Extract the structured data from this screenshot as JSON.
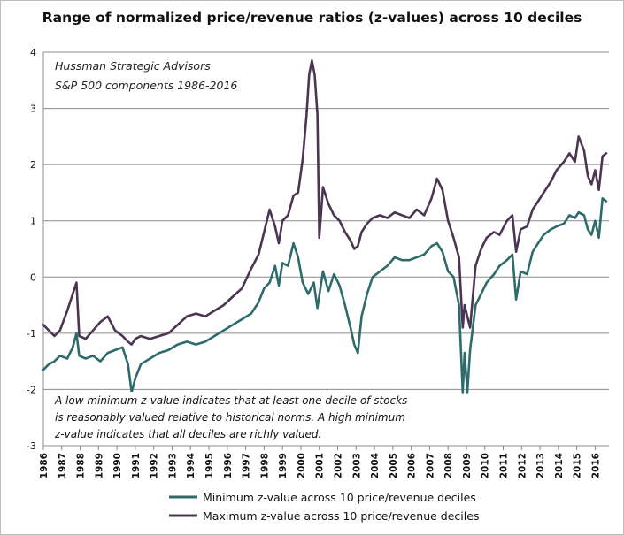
{
  "chart_data": {
    "type": "line",
    "title": "Range of normalized price/revenue ratios (z-values) across 10 deciles",
    "annotation": {
      "source": "Hussman Strategic Advisors",
      "subtitle": "S&P 500 components 1986-2016"
    },
    "caption": [
      "A low minimum z-value indicates that at least one decile of stocks",
      "is reasonably valued relative to historical norms. A high minimum",
      "z-value indicates that all deciles are richly valued."
    ],
    "ylim": [
      -3,
      4
    ],
    "yticks": [
      "-3",
      "-2",
      "-1",
      "0",
      "1",
      "2",
      "3",
      "4"
    ],
    "xlim": [
      1986,
      2016.75
    ],
    "xticks": [
      "1986",
      "1987",
      "1988",
      "1989",
      "1990",
      "1991",
      "1992",
      "1993",
      "1994",
      "1995",
      "1996",
      "1997",
      "1998",
      "1999",
      "2000",
      "2001",
      "2002",
      "2003",
      "2004",
      "2005",
      "2006",
      "2007",
      "2008",
      "2009",
      "2010",
      "2011",
      "2012",
      "2013",
      "2014",
      "2015",
      "2016"
    ],
    "grid": "horizontal",
    "legend_position": "bottom",
    "series": [
      {
        "name": "Minimum z-value across 10 price/revenue deciles",
        "color": "#2e6b6b",
        "points": [
          [
            1986.0,
            -1.65
          ],
          [
            1986.3,
            -1.55
          ],
          [
            1986.6,
            -1.5
          ],
          [
            1986.9,
            -1.4
          ],
          [
            1987.3,
            -1.45
          ],
          [
            1987.6,
            -1.25
          ],
          [
            1987.8,
            -1.0
          ],
          [
            1987.95,
            -1.4
          ],
          [
            1988.3,
            -1.45
          ],
          [
            1988.7,
            -1.4
          ],
          [
            1989.1,
            -1.5
          ],
          [
            1989.5,
            -1.35
          ],
          [
            1989.9,
            -1.3
          ],
          [
            1990.3,
            -1.25
          ],
          [
            1990.6,
            -1.55
          ],
          [
            1990.8,
            -2.05
          ],
          [
            1991.0,
            -1.8
          ],
          [
            1991.3,
            -1.55
          ],
          [
            1991.8,
            -1.45
          ],
          [
            1992.3,
            -1.35
          ],
          [
            1992.8,
            -1.3
          ],
          [
            1993.3,
            -1.2
          ],
          [
            1993.8,
            -1.15
          ],
          [
            1994.3,
            -1.2
          ],
          [
            1994.8,
            -1.15
          ],
          [
            1995.3,
            -1.05
          ],
          [
            1995.8,
            -0.95
          ],
          [
            1996.3,
            -0.85
          ],
          [
            1996.8,
            -0.75
          ],
          [
            1997.3,
            -0.65
          ],
          [
            1997.7,
            -0.45
          ],
          [
            1998.0,
            -0.2
          ],
          [
            1998.3,
            -0.1
          ],
          [
            1998.6,
            0.2
          ],
          [
            1998.8,
            -0.15
          ],
          [
            1999.0,
            0.25
          ],
          [
            1999.3,
            0.2
          ],
          [
            1999.6,
            0.6
          ],
          [
            1999.85,
            0.35
          ],
          [
            2000.1,
            -0.1
          ],
          [
            2000.4,
            -0.3
          ],
          [
            2000.7,
            -0.1
          ],
          [
            2000.9,
            -0.55
          ],
          [
            2001.2,
            0.1
          ],
          [
            2001.5,
            -0.25
          ],
          [
            2001.8,
            0.05
          ],
          [
            2002.1,
            -0.15
          ],
          [
            2002.4,
            -0.5
          ],
          [
            2002.7,
            -0.9
          ],
          [
            2002.9,
            -1.2
          ],
          [
            2003.1,
            -1.35
          ],
          [
            2003.3,
            -0.7
          ],
          [
            2003.6,
            -0.3
          ],
          [
            2003.9,
            0.0
          ],
          [
            2004.3,
            0.1
          ],
          [
            2004.7,
            0.2
          ],
          [
            2005.1,
            0.35
          ],
          [
            2005.5,
            0.3
          ],
          [
            2005.9,
            0.3
          ],
          [
            2006.3,
            0.35
          ],
          [
            2006.7,
            0.4
          ],
          [
            2007.1,
            0.55
          ],
          [
            2007.4,
            0.6
          ],
          [
            2007.7,
            0.45
          ],
          [
            2008.0,
            0.1
          ],
          [
            2008.3,
            0.0
          ],
          [
            2008.6,
            -0.5
          ],
          [
            2008.8,
            -2.05
          ],
          [
            2008.9,
            -1.35
          ],
          [
            2009.05,
            -2.05
          ],
          [
            2009.2,
            -1.3
          ],
          [
            2009.5,
            -0.5
          ],
          [
            2009.8,
            -0.3
          ],
          [
            2010.1,
            -0.1
          ],
          [
            2010.5,
            0.05
          ],
          [
            2010.8,
            0.2
          ],
          [
            2011.2,
            0.3
          ],
          [
            2011.5,
            0.4
          ],
          [
            2011.7,
            -0.4
          ],
          [
            2011.95,
            0.1
          ],
          [
            2012.3,
            0.05
          ],
          [
            2012.6,
            0.45
          ],
          [
            2012.9,
            0.6
          ],
          [
            2013.2,
            0.75
          ],
          [
            2013.6,
            0.85
          ],
          [
            2013.9,
            0.9
          ],
          [
            2014.3,
            0.95
          ],
          [
            2014.6,
            1.1
          ],
          [
            2014.9,
            1.05
          ],
          [
            2015.1,
            1.15
          ],
          [
            2015.4,
            1.1
          ],
          [
            2015.6,
            0.85
          ],
          [
            2015.8,
            0.75
          ],
          [
            2016.0,
            1.0
          ],
          [
            2016.2,
            0.7
          ],
          [
            2016.4,
            1.4
          ],
          [
            2016.6,
            1.35
          ]
        ]
      },
      {
        "name": "Maximum z-value across 10 price/revenue deciles",
        "color": "#4b3553",
        "points": [
          [
            1986.0,
            -0.85
          ],
          [
            1986.3,
            -0.95
          ],
          [
            1986.6,
            -1.05
          ],
          [
            1986.9,
            -0.95
          ],
          [
            1987.3,
            -0.6
          ],
          [
            1987.6,
            -0.3
          ],
          [
            1987.8,
            -0.1
          ],
          [
            1987.95,
            -1.05
          ],
          [
            1988.3,
            -1.1
          ],
          [
            1988.7,
            -0.95
          ],
          [
            1989.1,
            -0.8
          ],
          [
            1989.5,
            -0.7
          ],
          [
            1989.9,
            -0.95
          ],
          [
            1990.3,
            -1.05
          ],
          [
            1990.6,
            -1.15
          ],
          [
            1990.8,
            -1.2
          ],
          [
            1991.0,
            -1.1
          ],
          [
            1991.3,
            -1.05
          ],
          [
            1991.8,
            -1.1
          ],
          [
            1992.3,
            -1.05
          ],
          [
            1992.8,
            -1.0
          ],
          [
            1993.3,
            -0.85
          ],
          [
            1993.8,
            -0.7
          ],
          [
            1994.3,
            -0.65
          ],
          [
            1994.8,
            -0.7
          ],
          [
            1995.3,
            -0.6
          ],
          [
            1995.8,
            -0.5
          ],
          [
            1996.3,
            -0.35
          ],
          [
            1996.8,
            -0.2
          ],
          [
            1997.3,
            0.15
          ],
          [
            1997.7,
            0.4
          ],
          [
            1998.0,
            0.8
          ],
          [
            1998.3,
            1.2
          ],
          [
            1998.6,
            0.9
          ],
          [
            1998.8,
            0.6
          ],
          [
            1999.0,
            1.0
          ],
          [
            1999.3,
            1.1
          ],
          [
            1999.6,
            1.45
          ],
          [
            1999.85,
            1.5
          ],
          [
            2000.1,
            2.1
          ],
          [
            2000.3,
            2.85
          ],
          [
            2000.45,
            3.6
          ],
          [
            2000.6,
            3.85
          ],
          [
            2000.75,
            3.6
          ],
          [
            2000.9,
            2.9
          ],
          [
            2001.0,
            0.7
          ],
          [
            2001.2,
            1.6
          ],
          [
            2001.5,
            1.3
          ],
          [
            2001.8,
            1.1
          ],
          [
            2002.1,
            1.0
          ],
          [
            2002.4,
            0.8
          ],
          [
            2002.7,
            0.65
          ],
          [
            2002.9,
            0.5
          ],
          [
            2003.1,
            0.55
          ],
          [
            2003.3,
            0.8
          ],
          [
            2003.6,
            0.95
          ],
          [
            2003.9,
            1.05
          ],
          [
            2004.3,
            1.1
          ],
          [
            2004.7,
            1.05
          ],
          [
            2005.1,
            1.15
          ],
          [
            2005.5,
            1.1
          ],
          [
            2005.9,
            1.05
          ],
          [
            2006.3,
            1.2
          ],
          [
            2006.7,
            1.1
          ],
          [
            2007.1,
            1.4
          ],
          [
            2007.4,
            1.75
          ],
          [
            2007.7,
            1.55
          ],
          [
            2008.0,
            1.0
          ],
          [
            2008.3,
            0.7
          ],
          [
            2008.6,
            0.35
          ],
          [
            2008.8,
            -0.9
          ],
          [
            2008.9,
            -0.5
          ],
          [
            2009.05,
            -0.7
          ],
          [
            2009.2,
            -0.9
          ],
          [
            2009.5,
            0.2
          ],
          [
            2009.8,
            0.5
          ],
          [
            2010.1,
            0.7
          ],
          [
            2010.5,
            0.8
          ],
          [
            2010.8,
            0.75
          ],
          [
            2011.2,
            1.0
          ],
          [
            2011.5,
            1.1
          ],
          [
            2011.7,
            0.45
          ],
          [
            2011.95,
            0.85
          ],
          [
            2012.3,
            0.9
          ],
          [
            2012.6,
            1.2
          ],
          [
            2012.9,
            1.35
          ],
          [
            2013.2,
            1.5
          ],
          [
            2013.6,
            1.7
          ],
          [
            2013.9,
            1.9
          ],
          [
            2014.3,
            2.05
          ],
          [
            2014.6,
            2.2
          ],
          [
            2014.9,
            2.05
          ],
          [
            2015.1,
            2.5
          ],
          [
            2015.4,
            2.25
          ],
          [
            2015.6,
            1.8
          ],
          [
            2015.8,
            1.65
          ],
          [
            2016.0,
            1.9
          ],
          [
            2016.2,
            1.55
          ],
          [
            2016.4,
            2.15
          ],
          [
            2016.6,
            2.2
          ]
        ]
      }
    ]
  }
}
